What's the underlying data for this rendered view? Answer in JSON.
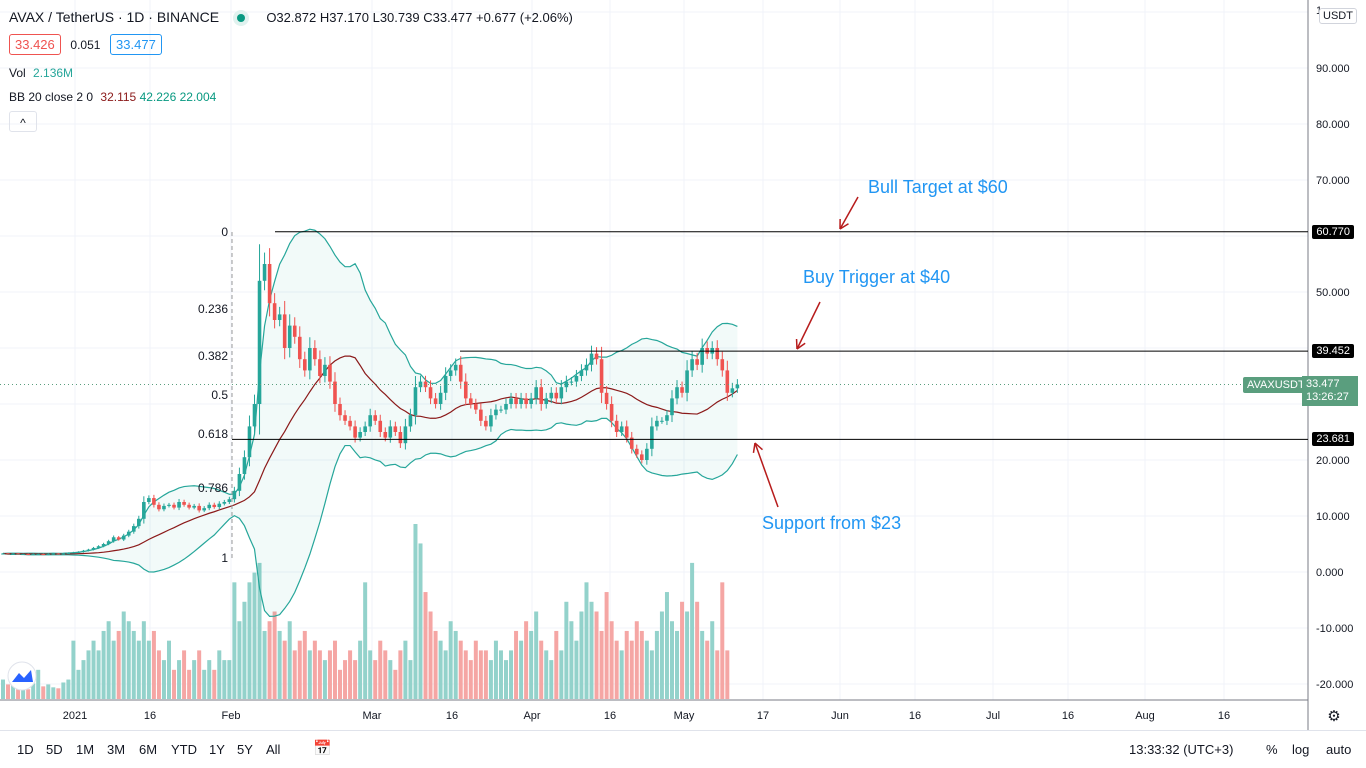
{
  "header": {
    "symbol": "AVAX / TetherUS · 1D · BINANCE",
    "open": "O32.872",
    "high": "H37.170",
    "low": "L30.739",
    "close": "C33.477",
    "change": "+0.677 (+2.06%)",
    "bid": "33.426",
    "spread": "0.051",
    "ask": "33.477",
    "vol_label": "Vol",
    "vol_value": "2.136M",
    "bb_label": "BB 20 close 2 0",
    "bb_basis": "32.115",
    "bb_upper": "42.226",
    "bb_lower": "22.004",
    "collapse": "^"
  },
  "price_axis": {
    "currency": "USDT",
    "labels": [
      "1",
      "90.000",
      "80.000",
      "70.000",
      "50.000",
      "20.000",
      "10.000",
      "0.000",
      "-10.000",
      "-20.000"
    ],
    "symbol_tag": "AVAXUSDT",
    "last_price": "33.477",
    "countdown": "13:26:27",
    "levels": [
      "60.770",
      "39.452",
      "23.681"
    ]
  },
  "time_axis": [
    "2021",
    "16",
    "Feb",
    "Mar",
    "16",
    "Apr",
    "16",
    "May",
    "17",
    "Jun",
    "16",
    "Jul",
    "16",
    "Aug",
    "16"
  ],
  "fib": [
    "0",
    "0.236",
    "0.382",
    "0.5",
    "0.618",
    "0.786",
    "1"
  ],
  "annotations": {
    "bull": "Bull Target at $60",
    "buy": "Buy Trigger at $40",
    "support": "Support from $23"
  },
  "toolbar": {
    "ranges": [
      "1D",
      "5D",
      "1M",
      "3M",
      "6M",
      "YTD",
      "1Y",
      "5Y",
      "All"
    ],
    "clock": "13:33:32 (UTC+3)",
    "percent": "%",
    "log": "log",
    "auto": "auto"
  },
  "colors": {
    "up": "#26a69a",
    "down": "#ef5350",
    "bb": "#26a69a",
    "basis": "#8b1a1a",
    "ann": "#2196f3",
    "arrow": "#b71c1c"
  },
  "chart_data": {
    "type": "candlestick",
    "start": "2020-12-17",
    "closes": [
      3.3,
      3.2,
      3.3,
      3.2,
      3.2,
      3.1,
      3.2,
      3.2,
      3.1,
      3.2,
      3.3,
      3.2,
      3.3,
      3.4,
      3.5,
      3.6,
      3.8,
      4.0,
      4.3,
      4.6,
      5.0,
      5.5,
      6.2,
      5.8,
      6.5,
      7.2,
      8.2,
      9.5,
      12.5,
      13.2,
      12.0,
      11.2,
      11.8,
      12.0,
      11.5,
      12.5,
      12.0,
      11.5,
      11.8,
      11.0,
      11.4,
      12.0,
      11.6,
      12.2,
      12.5,
      13.0,
      14.5,
      17.5,
      20.5,
      26.0,
      30.0,
      52.0,
      55.0,
      48.0,
      45.0,
      46.0,
      40.0,
      44.0,
      42.0,
      38.0,
      36.0,
      40.0,
      38.0,
      35.0,
      37.0,
      34.0,
      30.0,
      28.0,
      27.0,
      26.0,
      24.0,
      25.0,
      26.0,
      28.0,
      27.0,
      25.0,
      24.0,
      26.0,
      25.0,
      23.0,
      26.0,
      28.0,
      33.0,
      34.0,
      33.0,
      31.0,
      30.0,
      32.0,
      35.0,
      36.0,
      37.0,
      34.0,
      31.0,
      30.0,
      29.0,
      27.0,
      26.0,
      28.0,
      29.0,
      29.0,
      30.0,
      31.0,
      30.0,
      31.0,
      30.0,
      31.0,
      33.0,
      30.0,
      31.0,
      32.0,
      31.0,
      33.0,
      34.0,
      34.0,
      35.0,
      36.0,
      37.0,
      39.0,
      38.0,
      32.0,
      30.0,
      27.0,
      25.0,
      26.0,
      24.0,
      22.0,
      21.0,
      20.0,
      22.0,
      26.0,
      27.0,
      27.0,
      28.0,
      31.0,
      33.0,
      32.0,
      36.0,
      38.0,
      37.0,
      40.0,
      39.0,
      40.0,
      38.0,
      36.0,
      32.0,
      32.8,
      33.477
    ],
    "volumes": [
      2,
      1.5,
      1.8,
      1.2,
      1.4,
      1,
      1.6,
      3,
      1.3,
      1.5,
      1.2,
      1.1,
      1.7,
      2,
      6,
      3,
      4,
      5,
      6,
      5,
      7,
      8,
      6,
      7,
      9,
      8,
      7,
      6,
      8,
      6,
      7,
      5,
      4,
      6,
      3,
      4,
      5,
      3,
      4,
      5,
      3,
      4,
      3,
      5,
      4,
      4,
      12,
      8,
      10,
      12,
      13,
      14,
      7,
      8,
      9,
      7,
      6,
      8,
      5,
      6,
      7,
      5,
      6,
      5,
      4,
      5,
      6,
      3,
      4,
      5,
      4,
      6,
      12,
      5,
      4,
      6,
      5,
      4,
      3,
      5,
      6,
      4,
      18,
      16,
      11,
      9,
      7,
      6,
      5,
      8,
      7,
      6,
      5,
      4,
      6,
      5,
      5,
      4,
      6,
      5,
      4,
      5,
      7,
      6,
      8,
      7,
      9,
      6,
      5,
      4,
      7,
      5,
      10,
      8,
      6,
      9,
      12,
      10,
      9,
      7,
      11,
      8,
      6,
      5,
      7,
      6,
      8,
      7,
      6,
      5,
      7,
      9,
      11,
      8,
      7,
      10,
      9,
      14,
      10,
      7,
      6,
      8,
      5,
      12,
      5
    ]
  }
}
